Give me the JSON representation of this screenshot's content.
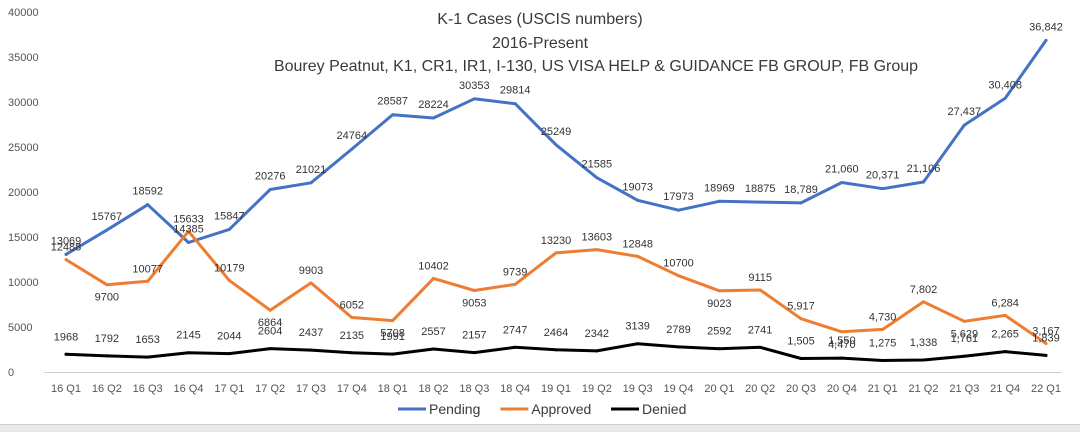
{
  "chart_data": {
    "type": "line",
    "title": "K-1 Cases (USCIS numbers)",
    "subtitle": "2016-Present",
    "subtitle2": "Bourey Peatnut,  K1, CR1, IR1, I-130, US VISA HELP & GUIDANCE FB GROUP, FB Group",
    "xlabel": "",
    "ylabel": "",
    "ylim": [
      0,
      40000
    ],
    "yticks": [
      "0",
      "5000",
      "10000",
      "15000",
      "20000",
      "25000",
      "30000",
      "35000",
      "40000"
    ],
    "grid": false,
    "legend_position": "bottom",
    "categories": [
      "16 Q1",
      "16 Q2",
      "16 Q3",
      "16 Q4",
      "17 Q1",
      "17 Q2",
      "17 Q3",
      "17 Q4",
      "18 Q1",
      "18 Q2",
      "18 Q3",
      "18 Q4",
      "19 Q1",
      "19 Q2",
      "19 Q3",
      "19 Q4",
      "20 Q1",
      "20 Q2",
      "20 Q3",
      "20 Q4",
      "21 Q1",
      "21 Q2",
      "21 Q3",
      "21 Q4",
      "22 Q1"
    ],
    "series": [
      {
        "name": "Pending",
        "color": "#4472c4",
        "values": [
          13069,
          15767,
          18592,
          14385,
          15847,
          20276,
          21021,
          24764,
          28587,
          28224,
          30353,
          29814,
          25249,
          21585,
          19073,
          17973,
          18969,
          18875,
          18789,
          21060,
          20371,
          21106,
          27437,
          30408,
          36842
        ],
        "labels": [
          "13069",
          "15767",
          "18592",
          "14385",
          "15847",
          "20276",
          "21021",
          "24764",
          "28587",
          "28224",
          "30353",
          "29814",
          "25249",
          "21585",
          "19073",
          "17973",
          "18969",
          "18875",
          "18,789",
          "21,060",
          "20,371",
          "21,106",
          "27,437",
          "30,408",
          "36,842"
        ]
      },
      {
        "name": "Approved",
        "color": "#ed7d31",
        "values": [
          12488,
          9700,
          10077,
          15633,
          10179,
          6864,
          9903,
          6052,
          5708,
          10402,
          9053,
          9739,
          13230,
          13603,
          12848,
          10700,
          9023,
          9115,
          5917,
          4470,
          4730,
          7802,
          5629,
          6284,
          3167
        ],
        "labels": [
          "12488",
          "9700",
          "10077",
          "15633",
          "10179",
          "6864",
          "9903",
          "6052",
          "5708",
          "10402",
          "9053",
          "9739",
          "13230",
          "13603",
          "12848",
          "10700",
          "9023",
          "9115",
          "5,917",
          "4,470",
          "4,730",
          "7,802",
          "5,629",
          "6,284",
          "3,167"
        ]
      },
      {
        "name": "Denied",
        "color": "#000000",
        "values": [
          1968,
          1792,
          1653,
          2145,
          2044,
          2604,
          2437,
          2135,
          1991,
          2557,
          2157,
          2747,
          2464,
          2342,
          3139,
          2789,
          2592,
          2741,
          1505,
          1550,
          1275,
          1338,
          1761,
          2265,
          1839
        ],
        "labels": [
          "1968",
          "1792",
          "1653",
          "2145",
          "2044",
          "2604",
          "2437",
          "2135",
          "1991",
          "2557",
          "2157",
          "2747",
          "2464",
          "2342",
          "3139",
          "2789",
          "2592",
          "2741",
          "1,505",
          "1,550",
          "1,275",
          "1,338",
          "1,761",
          "2,265",
          "1,839"
        ]
      }
    ]
  }
}
